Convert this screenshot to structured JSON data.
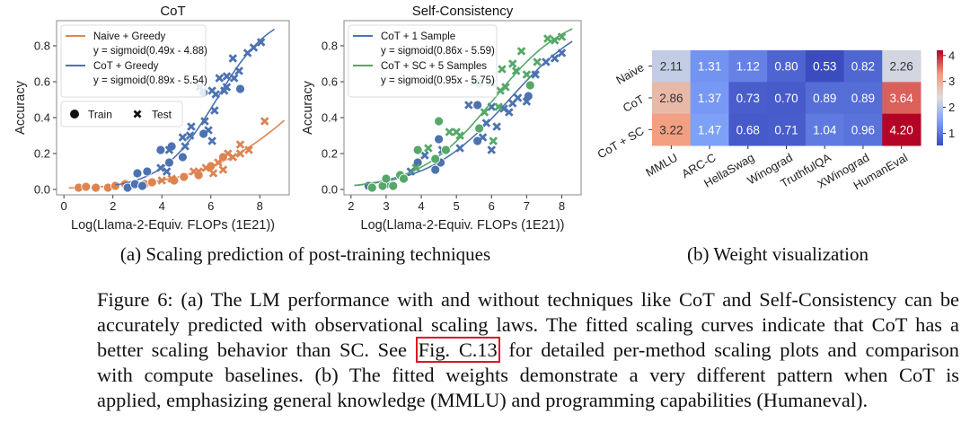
{
  "charts_colors": {
    "naive": "#dd8452",
    "cot": "#4c72b0",
    "sc": "#55a868"
  },
  "chart_data": [
    {
      "type": "scatter",
      "title": "CoT",
      "xlabel": "Log(Llama-2-Equiv. FLOPs (1E21))",
      "ylabel": "Accuracy",
      "xlim": [
        -0.3,
        9.2
      ],
      "ylim": [
        -0.03,
        0.94
      ],
      "xticks": [
        0,
        2,
        4,
        6,
        8
      ],
      "yticks": [
        "0.0",
        "0.2",
        "0.4",
        "0.6",
        "0.8"
      ],
      "legend": [
        {
          "label": "Naive + Greedy",
          "formula": "y = sigmoid(0.49x - 4.88)",
          "color": "#dd8452"
        },
        {
          "label": "CoT + Greedy",
          "formula": "y = sigmoid(0.89x - 5.54)",
          "color": "#4c72b0"
        }
      ],
      "marker_legend": [
        "Train",
        "Test"
      ],
      "series": [
        {
          "name": "Naive + Greedy",
          "color": "#dd8452",
          "fit": {
            "a": 0.49,
            "b": -4.88,
            "x": [
              0.2,
              9.0
            ]
          },
          "train": [
            [
              0.6,
              0.01
            ],
            [
              0.9,
              0.015
            ],
            [
              1.3,
              0.01
            ],
            [
              1.8,
              0.01
            ],
            [
              2.1,
              0.02
            ],
            [
              2.5,
              0.03
            ],
            [
              3.3,
              0.03
            ],
            [
              3.6,
              0.04
            ],
            [
              4.5,
              0.05
            ],
            [
              4.9,
              0.07
            ],
            [
              5.5,
              0.08
            ],
            [
              6.0,
              0.13
            ],
            [
              6.5,
              0.18
            ]
          ],
          "test": [
            [
              4.0,
              0.05
            ],
            [
              4.4,
              0.06
            ],
            [
              5.3,
              0.1
            ],
            [
              5.5,
              0.1
            ],
            [
              5.8,
              0.12
            ],
            [
              6.1,
              0.09
            ],
            [
              6.3,
              0.15
            ],
            [
              6.5,
              0.11
            ],
            [
              6.7,
              0.2
            ],
            [
              6.9,
              0.18
            ],
            [
              7.2,
              0.2
            ],
            [
              7.2,
              0.25
            ],
            [
              7.55,
              0.22
            ],
            [
              8.2,
              0.38
            ]
          ]
        },
        {
          "name": "CoT + Greedy",
          "color": "#4c72b0",
          "fit": {
            "a": 0.89,
            "b": -5.54,
            "x": [
              2.1,
              8.6
            ]
          },
          "train": [
            [
              2.6,
              0.01
            ],
            [
              2.9,
              0.03
            ],
            [
              3.0,
              0.09
            ],
            [
              3.2,
              0.02
            ],
            [
              3.4,
              0.1
            ],
            [
              3.95,
              0.22
            ],
            [
              4.3,
              0.15
            ],
            [
              4.4,
              0.24
            ],
            [
              4.55,
              0.4
            ],
            [
              4.85,
              0.18
            ],
            [
              5.7,
              0.31
            ],
            [
              5.7,
              0.54
            ],
            [
              7.2,
              0.56
            ]
          ],
          "test": [
            [
              3.95,
              0.12
            ],
            [
              4.2,
              0.1
            ],
            [
              4.3,
              0.22
            ],
            [
              4.85,
              0.29
            ],
            [
              4.95,
              0.24
            ],
            [
              5.15,
              0.3
            ],
            [
              5.2,
              0.35
            ],
            [
              5.55,
              0.57
            ],
            [
              5.75,
              0.38
            ],
            [
              5.9,
              0.33
            ],
            [
              6.05,
              0.27
            ],
            [
              6.05,
              0.55
            ],
            [
              6.15,
              0.44
            ],
            [
              6.2,
              0.53
            ],
            [
              6.35,
              0.62
            ],
            [
              6.55,
              0.55
            ],
            [
              6.65,
              0.63
            ],
            [
              6.65,
              0.57
            ],
            [
              6.9,
              0.73
            ],
            [
              6.95,
              0.62
            ],
            [
              7.15,
              0.66
            ],
            [
              7.5,
              0.76
            ],
            [
              7.75,
              0.79
            ],
            [
              8.05,
              0.82
            ]
          ]
        }
      ]
    },
    {
      "type": "scatter",
      "title": "Self-Consistency",
      "xlabel": "Log(Llama-2-Equiv. FLOPs (1E21))",
      "ylabel": "Accuracy",
      "xlim": [
        1.8,
        8.55
      ],
      "ylim": [
        -0.03,
        0.94
      ],
      "xticks": [
        2,
        3,
        4,
        5,
        6,
        7,
        8
      ],
      "yticks": [
        "0.0",
        "0.2",
        "0.4",
        "0.6",
        "0.8"
      ],
      "legend": [
        {
          "label": "CoT + 1 Sample",
          "formula": "y = sigmoid(0.86x - 5.59)",
          "color": "#4c72b0"
        },
        {
          "label": "CoT + SC + 5 Samples",
          "formula": "y = sigmoid(0.95x - 5.75)",
          "color": "#55a868"
        }
      ],
      "series": [
        {
          "name": "CoT + 1 Sample",
          "color": "#4c72b0",
          "fit": {
            "a": 0.86,
            "b": -5.59,
            "x": [
              2.1,
              8.3
            ]
          },
          "train": [
            [
              2.5,
              0.02
            ],
            [
              3.0,
              0.03
            ],
            [
              3.9,
              0.15
            ],
            [
              4.4,
              0.11
            ],
            [
              4.5,
              0.28
            ],
            [
              4.55,
              0.15
            ],
            [
              5.6,
              0.27
            ],
            [
              5.6,
              0.47
            ],
            [
              7.05,
              0.52
            ]
          ],
          "test": [
            [
              3.7,
              0.1
            ],
            [
              4.1,
              0.19
            ],
            [
              4.6,
              0.22
            ],
            [
              5.1,
              0.23
            ],
            [
              5.35,
              0.47
            ],
            [
              5.75,
              0.29
            ],
            [
              5.85,
              0.37
            ],
            [
              6.0,
              0.22
            ],
            [
              6.0,
              0.46
            ],
            [
              6.15,
              0.35
            ],
            [
              6.35,
              0.45
            ],
            [
              6.5,
              0.43
            ],
            [
              6.6,
              0.48
            ],
            [
              6.75,
              0.51
            ],
            [
              7.0,
              0.49
            ],
            [
              7.25,
              0.64
            ],
            [
              7.55,
              0.71
            ],
            [
              7.8,
              0.73
            ],
            [
              8.0,
              0.76
            ]
          ]
        },
        {
          "name": "CoT + SC + 5 Samples",
          "color": "#55a868",
          "fit": {
            "a": 0.95,
            "b": -5.75,
            "x": [
              2.1,
              8.3
            ]
          },
          "train": [
            [
              2.6,
              0.01
            ],
            [
              2.9,
              0.02
            ],
            [
              3.0,
              0.06
            ],
            [
              3.2,
              0.02
            ],
            [
              3.4,
              0.08
            ],
            [
              3.5,
              0.06
            ],
            [
              3.9,
              0.22
            ],
            [
              4.4,
              0.17
            ],
            [
              4.5,
              0.38
            ],
            [
              4.7,
              0.22
            ],
            [
              5.65,
              0.34
            ],
            [
              5.65,
              0.59
            ],
            [
              7.1,
              0.58
            ]
          ],
          "test": [
            [
              3.85,
              0.12
            ],
            [
              4.2,
              0.23
            ],
            [
              4.8,
              0.32
            ],
            [
              5.0,
              0.32
            ],
            [
              5.1,
              0.3
            ],
            [
              5.5,
              0.6
            ],
            [
              5.8,
              0.43
            ],
            [
              6.0,
              0.59
            ],
            [
              6.05,
              0.27
            ],
            [
              6.2,
              0.46
            ],
            [
              6.25,
              0.55
            ],
            [
              6.3,
              0.67
            ],
            [
              6.4,
              0.57
            ],
            [
              6.6,
              0.7
            ],
            [
              6.7,
              0.66
            ],
            [
              6.85,
              0.77
            ],
            [
              7.0,
              0.64
            ],
            [
              7.3,
              0.71
            ],
            [
              7.6,
              0.84
            ],
            [
              7.8,
              0.83
            ],
            [
              8.0,
              0.85
            ]
          ]
        }
      ]
    },
    {
      "type": "heatmap",
      "rows": [
        "Naive",
        "CoT",
        "CoT + SC"
      ],
      "columns": [
        "MMLU",
        "ARC-C",
        "HellaSwag",
        "Winograd",
        "TruthfulQA",
        "XWinograd",
        "HumanEval"
      ],
      "values": [
        [
          2.11,
          1.31,
          1.12,
          0.8,
          0.53,
          0.82,
          2.26
        ],
        [
          2.86,
          1.37,
          0.73,
          0.7,
          0.89,
          0.89,
          3.64
        ],
        [
          3.22,
          1.47,
          0.68,
          0.71,
          1.04,
          0.96,
          4.2
        ]
      ],
      "colormap": "coolwarm",
      "vmin": 0.53,
      "vmax": 4.2,
      "colorbar_ticks": [
        1,
        2,
        3,
        4
      ]
    }
  ],
  "subcaptions": {
    "a": "(a) Scaling prediction of post-training techniques",
    "b": "(b) Weight visualization"
  },
  "caption": {
    "lines": [
      "Figure 6: (a) The LM performance with and without techniques like CoT and Self-Consistency can be",
      "accurately predicted with observational scaling laws. The fitted scaling curves indicate that CoT has a",
      "better scaling behavior than SC. See ",
      "with compute baselines. (b) The fitted weights demonstrate a very different pattern when CoT is",
      "applied, emphasizing general knowledge (MMLU) and programming capabilities (Humaneval)."
    ],
    "ref_link": "Fig. C.13",
    "line3_after": " for detailed per-method scaling plots and comparison"
  }
}
